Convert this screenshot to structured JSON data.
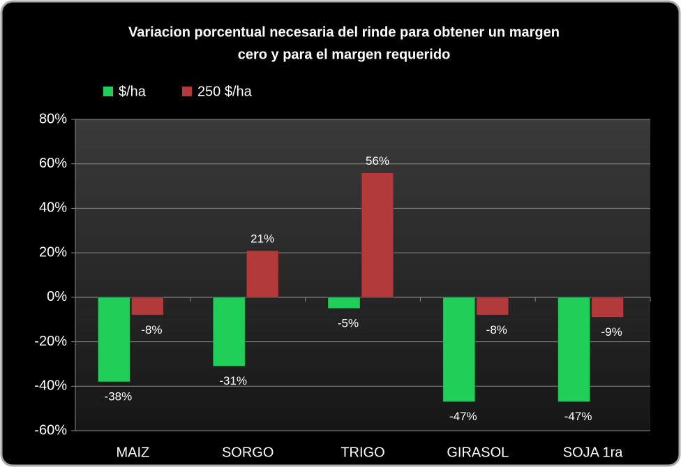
{
  "chart_data": {
    "type": "bar",
    "title": [
      "Variacion porcentual necesaria del rinde para obtener un margen",
      "cero y para el margen requerido"
    ],
    "categories": [
      "MAIZ",
      "SORGO",
      "TRIGO",
      "GIRASOL",
      "SOJA 1ra"
    ],
    "series": [
      {
        "name": "$/ha",
        "color": "#1fcf58",
        "values": [
          -38,
          -31,
          -5,
          -47,
          -47
        ],
        "value_labels": [
          "-38%",
          "-31%",
          "-5%",
          "-47%",
          "-47%"
        ]
      },
      {
        "name": "250 $/ha",
        "color": "#b23a3a",
        "values": [
          -8,
          21,
          56,
          -8,
          -9
        ],
        "value_labels": [
          "-8%",
          "21%",
          "56%",
          "-8%",
          "-9%"
        ]
      }
    ],
    "ylim": [
      -60,
      80
    ],
    "yticks": [
      {
        "value": -60,
        "label": "-60%"
      },
      {
        "value": -40,
        "label": "-40%"
      },
      {
        "value": -20,
        "label": "-20%"
      },
      {
        "value": 0,
        "label": "0%"
      },
      {
        "value": 20,
        "label": "20%"
      },
      {
        "value": 40,
        "label": "40%"
      },
      {
        "value": 60,
        "label": "60%"
      },
      {
        "value": 80,
        "label": "80%"
      }
    ],
    "grid": true,
    "legend": "top"
  }
}
